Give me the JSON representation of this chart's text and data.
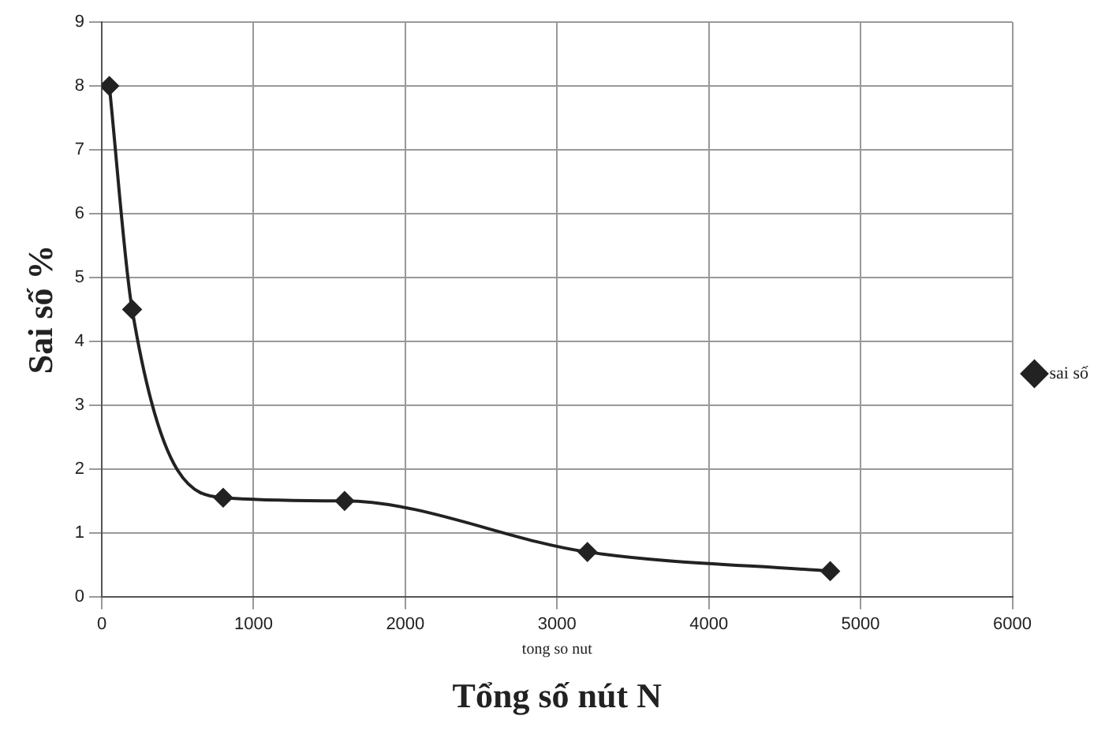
{
  "chart_data": {
    "type": "line",
    "xlabel": "Tổng số nút N",
    "ylabel": "Sai số %",
    "annotations": [
      "tong so nut"
    ],
    "series": [
      {
        "name": "sai số",
        "color": "#222222",
        "x": [
          50,
          200,
          800,
          1600,
          3200,
          4800
        ],
        "values": [
          8,
          4.5,
          1.55,
          1.5,
          0.7,
          0.4
        ]
      }
    ],
    "xlim": [
      0,
      6000
    ],
    "xticks": [
      0,
      1000,
      2000,
      3000,
      4000,
      5000,
      6000
    ],
    "ylim": [
      0,
      9
    ],
    "yticks": [
      0,
      1,
      2,
      3,
      4,
      5,
      6,
      7,
      8,
      9
    ],
    "grid": true,
    "legend": "right",
    "marker": "diamond",
    "line_style": "solid"
  }
}
